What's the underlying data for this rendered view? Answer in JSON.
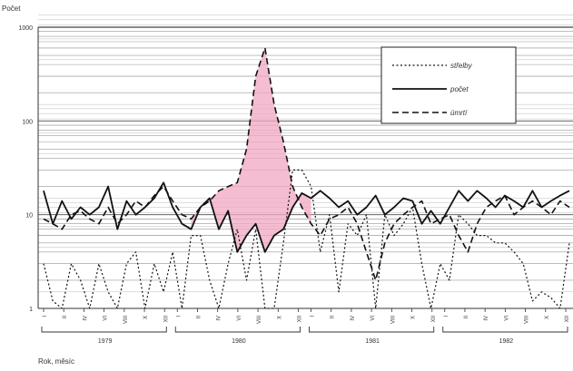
{
  "chart_data": {
    "type": "line",
    "title": "",
    "ylabel": "Počet",
    "xlabel": "Rok, měsíc",
    "yscale": "log",
    "ylim": [
      1,
      1000
    ],
    "y_ticks": [
      "1",
      "10",
      "100",
      "1000"
    ],
    "grid": "horizontal dense lines",
    "legend_position": "top-right",
    "month_labels": [
      "I",
      "II",
      "IV",
      "VI",
      "VIII",
      "X",
      "XII"
    ],
    "years": [
      "1979",
      "1980",
      "1981",
      "1982"
    ],
    "highlight_color": "#f2a7c3",
    "series": [
      {
        "name": "střelby",
        "style": "dotted",
        "values": [
          3,
          1.2,
          1,
          3,
          2,
          1,
          3,
          1.5,
          1,
          3,
          4,
          1,
          3,
          1.5,
          4,
          1,
          6,
          6,
          2,
          1,
          3,
          7,
          2,
          7,
          1,
          1,
          5,
          30,
          30,
          20,
          4,
          10,
          1.5,
          8,
          6,
          10,
          1,
          10,
          6,
          8,
          12,
          3,
          1,
          3,
          2,
          10,
          8,
          6,
          6,
          5,
          5,
          4,
          3,
          1.2,
          1.5,
          1.3,
          1,
          5
        ]
      },
      {
        "name": "počet",
        "style": "solid",
        "values": [
          18,
          8,
          14,
          9,
          12,
          10,
          12,
          20,
          7,
          14,
          10,
          12,
          15,
          22,
          12,
          8,
          7,
          12,
          15,
          7,
          11,
          4,
          6,
          8,
          4,
          6,
          7,
          12,
          17,
          15,
          18,
          15,
          12,
          14,
          10,
          12,
          16,
          10,
          12,
          15,
          14,
          8,
          11,
          8,
          12,
          18,
          14,
          18,
          15,
          12,
          16,
          14,
          12,
          18,
          12,
          14,
          16,
          18
        ]
      },
      {
        "name": "úmrtí",
        "style": "dashed",
        "values": [
          9,
          8,
          7,
          10,
          11,
          9,
          8,
          12,
          8,
          10,
          14,
          12,
          16,
          20,
          14,
          10,
          9,
          12,
          14,
          18,
          20,
          22,
          50,
          300,
          600,
          150,
          60,
          20,
          12,
          8,
          6,
          9,
          10,
          12,
          8,
          4,
          2,
          5,
          8,
          10,
          12,
          14,
          8,
          9,
          10,
          6,
          4,
          8,
          12,
          14,
          16,
          10,
          12,
          14,
          12,
          10,
          14,
          12
        ]
      }
    ]
  }
}
